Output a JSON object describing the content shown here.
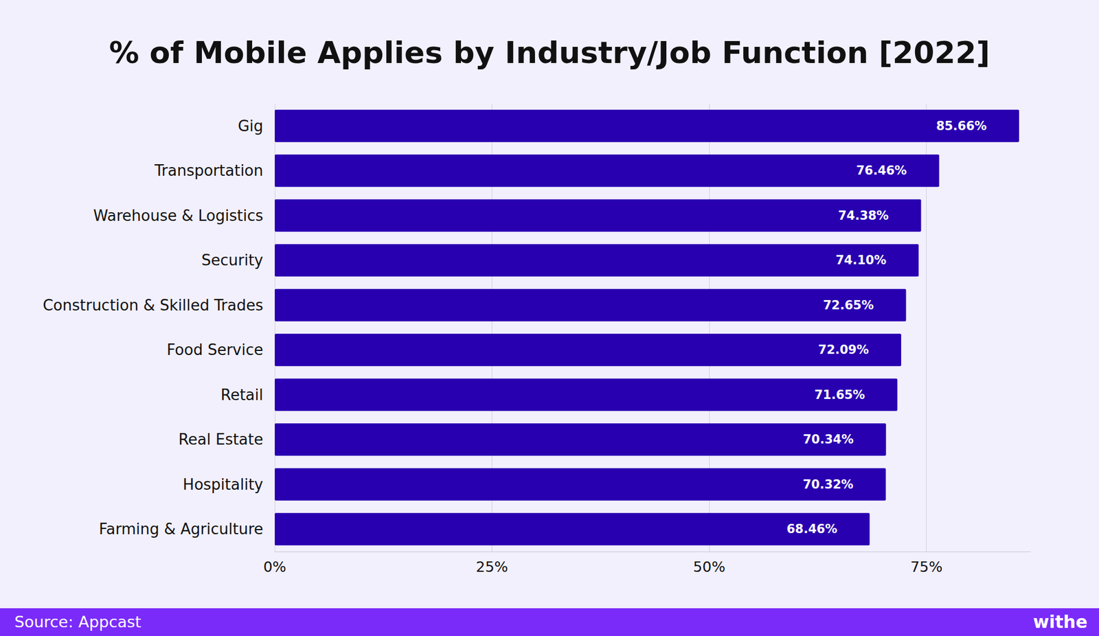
{
  "chart_data": {
    "type": "bar",
    "title": "% of Mobile Applies by Industry/Job Function [2022]",
    "orientation": "horizontal",
    "categories": [
      "Gig",
      "Transportation",
      "Warehouse & Logistics",
      "Security",
      "Construction & Skilled Trades",
      "Food Service",
      "Retail",
      "Real Estate",
      "Hospitality",
      "Farming & Agriculture"
    ],
    "values": [
      85.66,
      76.46,
      74.38,
      74.1,
      72.65,
      72.09,
      71.65,
      70.34,
      70.32,
      68.46
    ],
    "value_labels": [
      "85.66%",
      "76.46%",
      "74.38%",
      "74.10%",
      "72.65%",
      "72.09%",
      "71.65%",
      "70.34%",
      "70.32%",
      "68.46%"
    ],
    "data_labels": true,
    "color": "#2900b0",
    "xlim": [
      0,
      87
    ],
    "xticks": [
      {
        "value": 0,
        "label": "0%"
      },
      {
        "value": 25,
        "label": "25%"
      },
      {
        "value": 50,
        "label": "50%"
      },
      {
        "value": 75,
        "label": "75%"
      }
    ],
    "grid": true,
    "source": "Source: Appcast",
    "logo": "withe"
  }
}
